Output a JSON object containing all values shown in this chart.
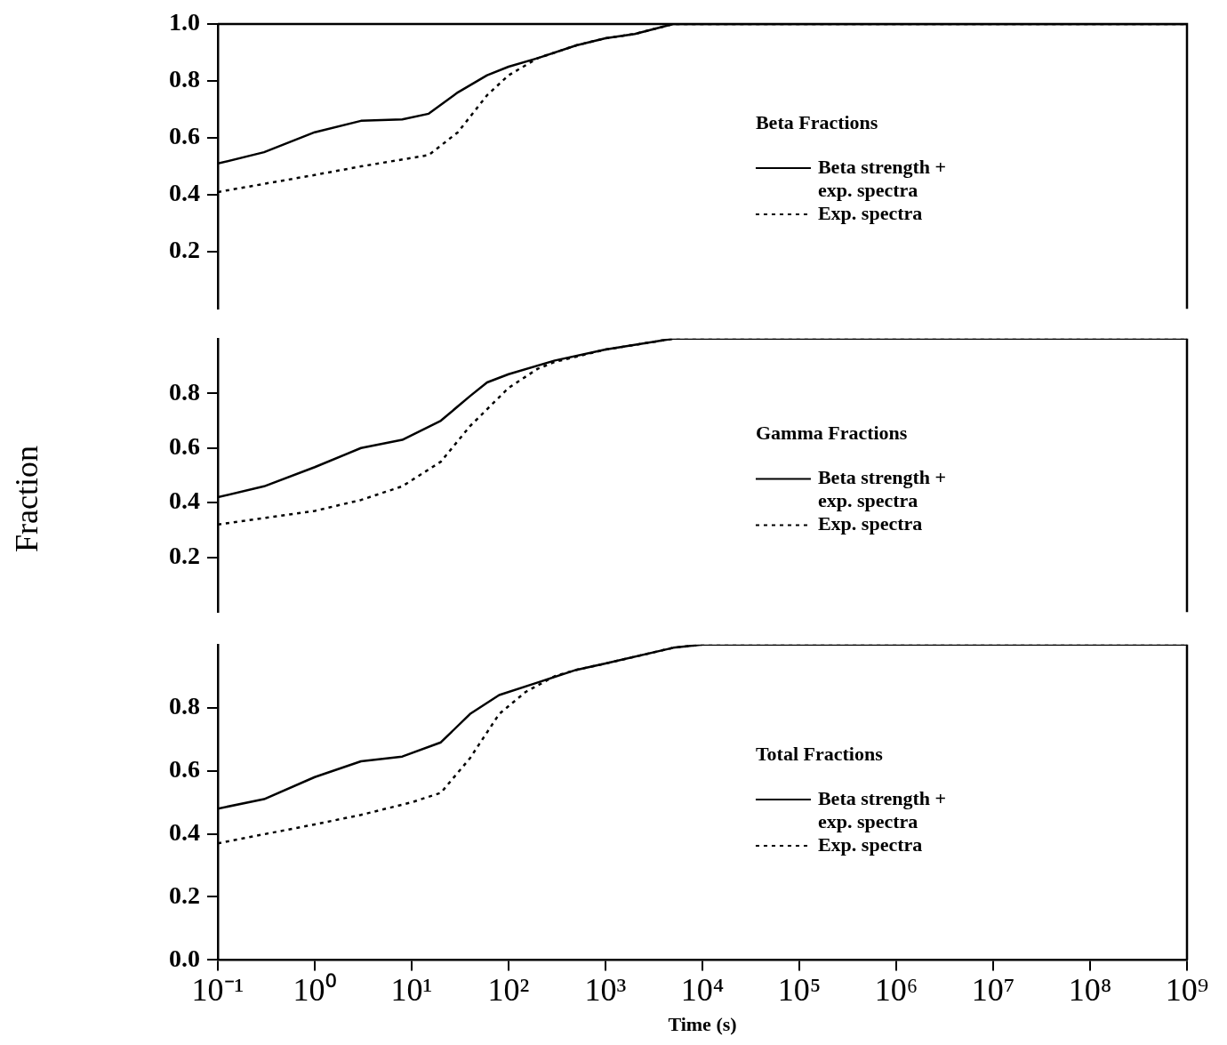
{
  "chart_data": [
    {
      "type": "line",
      "legend_title": "Beta Fractions",
      "legend": "right",
      "xlim": [
        0.1,
        1000000000
      ],
      "ylim": [
        0,
        1
      ],
      "yticks": [
        0.2,
        0.4,
        0.6,
        0.8,
        {
          "value": 1,
          "label": "1.0"
        }
      ],
      "tick_labels": "y",
      "log": "x",
      "series": [
        {
          "name": "Beta strength + exp. spectra",
          "color": "#000000",
          "line_style": "solid",
          "x": [
            0.1,
            0.3,
            1,
            3,
            8,
            15,
            30,
            60,
            100,
            200,
            500,
            1000,
            2000,
            5000,
            10000,
            1000000000
          ],
          "values": [
            0.51,
            0.55,
            0.62,
            0.66,
            0.665,
            0.685,
            0.76,
            0.82,
            0.85,
            0.88,
            0.925,
            0.95,
            0.965,
            1.0,
            1.0,
            1.0
          ]
        },
        {
          "name": "Exp. spectra",
          "color": "#000000",
          "line_style": "dotted",
          "x": [
            0.1,
            1,
            3,
            15,
            30,
            60,
            100,
            200,
            500,
            1000,
            2000,
            5000,
            10000,
            1000000000
          ],
          "values": [
            0.41,
            0.47,
            0.5,
            0.54,
            0.62,
            0.75,
            0.82,
            0.88,
            0.925,
            0.95,
            0.965,
            1.0,
            1.0,
            1.0
          ]
        }
      ]
    },
    {
      "type": "line",
      "legend_title": "Gamma Fractions",
      "legend": "right",
      "ylabel": "Fraction",
      "xlim": [
        0.1,
        1000000000
      ],
      "ylim": [
        0,
        1
      ],
      "yticks": [
        0.2,
        0.4,
        0.6,
        0.8
      ],
      "tick_labels": "y",
      "log": "x",
      "series": [
        {
          "name": "Beta strength + exp. spectra",
          "color": "#000000",
          "line_style": "solid",
          "x": [
            0.1,
            0.3,
            1,
            3,
            8,
            20,
            40,
            60,
            100,
            300,
            1000,
            5000,
            10000,
            1000000000
          ],
          "values": [
            0.42,
            0.46,
            0.53,
            0.6,
            0.63,
            0.7,
            0.79,
            0.84,
            0.87,
            0.92,
            0.96,
            1.0,
            1.0,
            1.0
          ]
        },
        {
          "name": "Exp. spectra",
          "color": "#000000",
          "line_style": "dotted",
          "x": [
            0.1,
            1,
            3,
            8,
            20,
            40,
            100,
            200,
            300,
            1000,
            5000,
            10000,
            1000000000
          ],
          "values": [
            0.32,
            0.37,
            0.41,
            0.46,
            0.55,
            0.68,
            0.82,
            0.89,
            0.915,
            0.96,
            1.0,
            1.0,
            1.0
          ]
        }
      ]
    },
    {
      "type": "line",
      "legend_title": "Total Fractions",
      "legend": "right",
      "xlabel": "Time (s)",
      "xlim": [
        0.1,
        1000000000
      ],
      "xticks": [
        {
          "value": 0.1,
          "label": "10⁻¹"
        },
        {
          "value": 1,
          "label": "10⁰"
        },
        {
          "value": 10,
          "label": "10¹"
        },
        {
          "value": 100,
          "label": "10²"
        },
        {
          "value": 1000,
          "label": "10³"
        },
        {
          "value": 10000,
          "label": "10⁴"
        },
        {
          "value": 100000,
          "label": "10⁵"
        },
        {
          "value": 1000000,
          "label": "10⁶"
        },
        {
          "value": 10000000,
          "label": "10⁷"
        },
        {
          "value": 100000000,
          "label": "10⁸"
        },
        {
          "value": 1000000000,
          "label": "10⁹"
        }
      ],
      "ylim": [
        0,
        1
      ],
      "yticks": [
        {
          "value": 0,
          "label": "0.0"
        },
        0.2,
        0.4,
        0.6,
        0.8
      ],
      "log": "x",
      "series": [
        {
          "name": "Beta strength + exp. spectra",
          "color": "#000000",
          "line_style": "solid",
          "x": [
            0.1,
            0.3,
            1,
            3,
            8,
            20,
            40,
            80,
            200,
            500,
            1000,
            5000,
            10000,
            1000000000
          ],
          "values": [
            0.48,
            0.51,
            0.58,
            0.63,
            0.645,
            0.69,
            0.78,
            0.84,
            0.88,
            0.92,
            0.94,
            0.99,
            1.0,
            1.0
          ]
        },
        {
          "name": "Exp. spectra",
          "color": "#000000",
          "line_style": "dotted",
          "x": [
            0.1,
            1,
            3,
            10,
            20,
            40,
            80,
            150,
            300,
            500,
            1000,
            5000,
            10000,
            1000000000
          ],
          "values": [
            0.37,
            0.43,
            0.46,
            0.5,
            0.53,
            0.64,
            0.78,
            0.85,
            0.9,
            0.92,
            0.94,
            0.99,
            1.0,
            1.0
          ]
        }
      ]
    }
  ]
}
